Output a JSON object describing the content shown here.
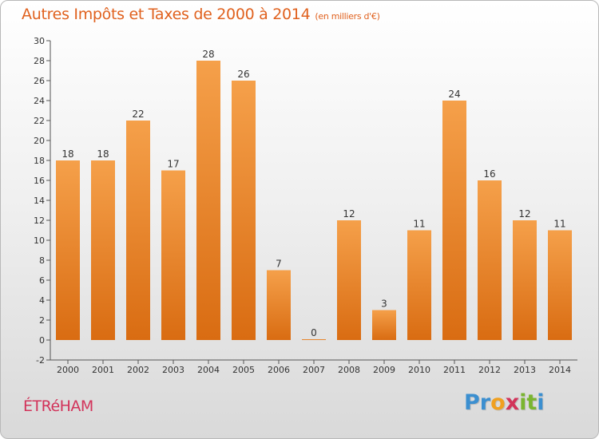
{
  "chart_data": {
    "type": "bar",
    "title": "Autres Impôts et Taxes de 2000 à 2014",
    "subtitle": "(en milliers d'€)",
    "categories": [
      "2000",
      "2001",
      "2002",
      "2003",
      "2004",
      "2005",
      "2006",
      "2007",
      "2008",
      "2009",
      "2010",
      "2011",
      "2012",
      "2013",
      "2014"
    ],
    "values": [
      18,
      18,
      22,
      17,
      28,
      26,
      7,
      0,
      12,
      3,
      11,
      24,
      16,
      12,
      11
    ],
    "ylim": [
      -2,
      30
    ],
    "yticks": [
      "-2",
      "0",
      "2",
      "4",
      "6",
      "8",
      "10",
      "12",
      "14",
      "16",
      "18",
      "20",
      "22",
      "24",
      "26",
      "28",
      "30"
    ],
    "xlabel": "",
    "ylabel": "",
    "grid": false,
    "bar_color": "#e8842c"
  },
  "commune": "ÉTRéHAM",
  "brand": {
    "letters": [
      "P",
      "r",
      "o",
      "x",
      "i",
      "t",
      "i"
    ],
    "colors": [
      "#3b8fd0",
      "#3b8fd0",
      "#f0a020",
      "#d2335a",
      "#7ab530",
      "#7ab530",
      "#3b8fd0"
    ]
  }
}
